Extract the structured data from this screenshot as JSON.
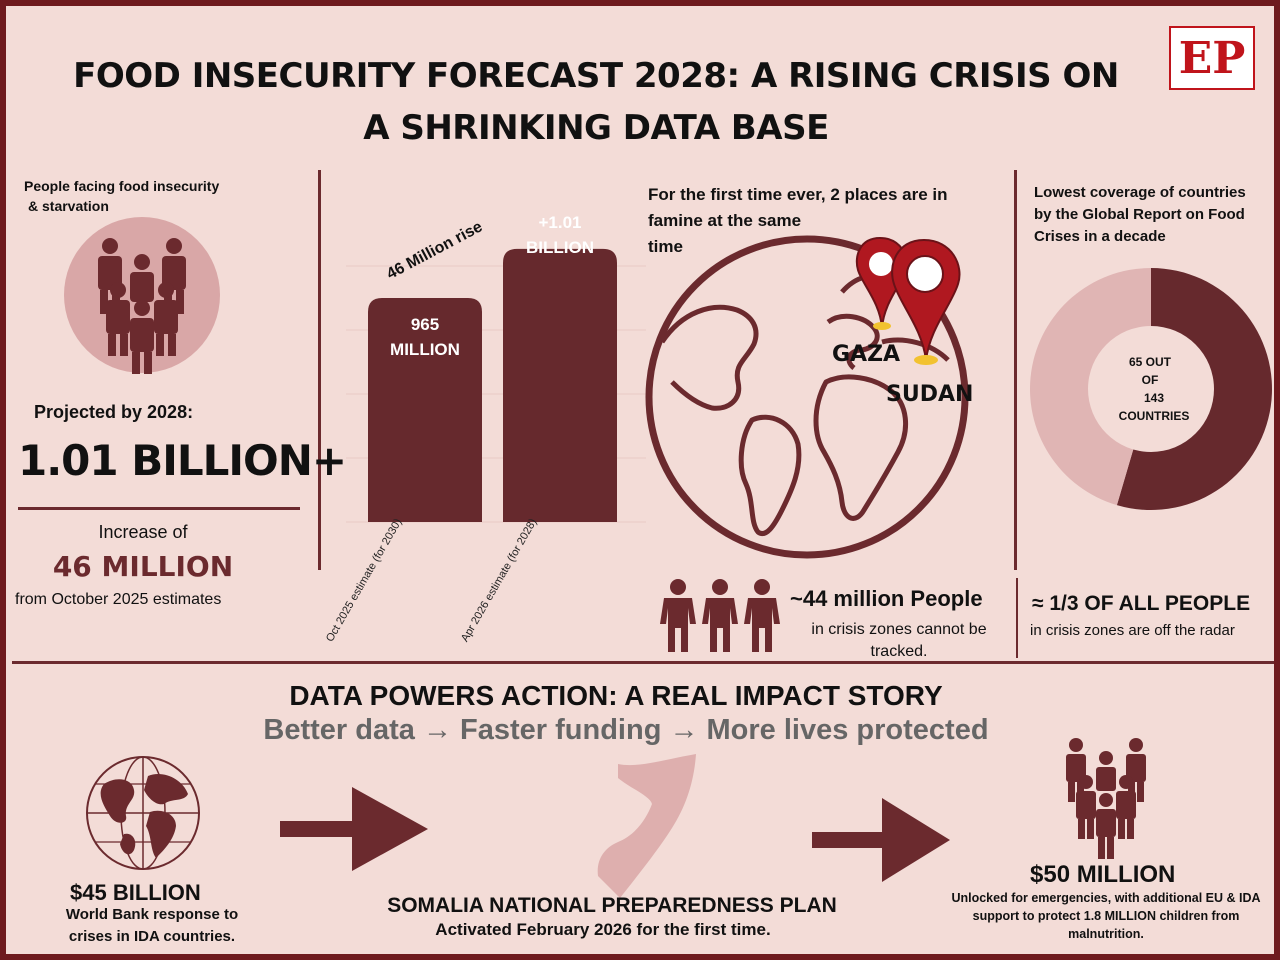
{
  "title": {
    "line1": "FOOD INSECURITY FORECAST 2028: A RISING CRISIS ON",
    "line2": "A SHRINKING DATA BASE"
  },
  "logo": "EP",
  "left_panel": {
    "heading_line1": "People facing food insecurity",
    "heading_line2": "& starvation",
    "projected_label": "Projected by 2028:",
    "projected_value": "1.01 BILLION+",
    "increase_label": "Increase of",
    "increase_value": "46 MILLION",
    "increase_note": "from October 2025 estimates"
  },
  "chart_data": {
    "type": "bar",
    "categories": [
      "Oct 2025 estimate (for 2030)",
      "Apr 2026 estimate (for 2028)"
    ],
    "values": [
      965,
      1010
    ],
    "value_labels": [
      [
        "965",
        "MILLION"
      ],
      [
        "+1.01",
        "BILLION"
      ]
    ],
    "annotation": "46 Million rise"
  },
  "famine_panel": {
    "text_line1": "For the first time ever, 2 places are in",
    "text_line2": "famine at the same",
    "text_line3": "time",
    "place1": "GAZA",
    "place2": "SUDAN"
  },
  "donut_panel": {
    "heading_line1": "Lowest coverage of countries",
    "heading_line2": "by the Global Report on Food",
    "heading_line3": "Crises in a decade",
    "center_line1": "65 OUT",
    "center_line2": "OF",
    "center_line3": "143",
    "center_line4": "COUNTRIES",
    "covered": 65,
    "total": 143,
    "colors": {
      "covered": "#e0b5b4",
      "rest": "#66292d"
    }
  },
  "stats": {
    "tracked_value": "~44 million People",
    "tracked_note_line1": "in crisis zones cannot be",
    "tracked_note_line2": "tracked.",
    "radar_value": "≈ 1/3 OF ALL PEOPLE",
    "radar_note": "in crisis zones are off the radar"
  },
  "impact": {
    "title": "DATA POWERS ACTION: A REAL IMPACT STORY",
    "subtitle": "Better data → Faster funding → More lives protected",
    "step1_value": "$45 BILLION",
    "step1_note_line1": "World Bank response to",
    "step1_note_line2": "crises in IDA countries.",
    "step2_title": "SOMALIA NATIONAL PREPAREDNESS PLAN",
    "step2_note": "Activated February 2026 for the first time.",
    "step3_value": "$50 MILLION",
    "step3_note_line1": "Unlocked for emergencies, with additional EU & IDA",
    "step3_note_line2": "support to protect 1.8 MILLION children from",
    "step3_note_line3": "malnutrition."
  },
  "colors": {
    "primary": "#6b2a2e",
    "background": "#f3dcd7",
    "accent_red": "#c0141b"
  }
}
